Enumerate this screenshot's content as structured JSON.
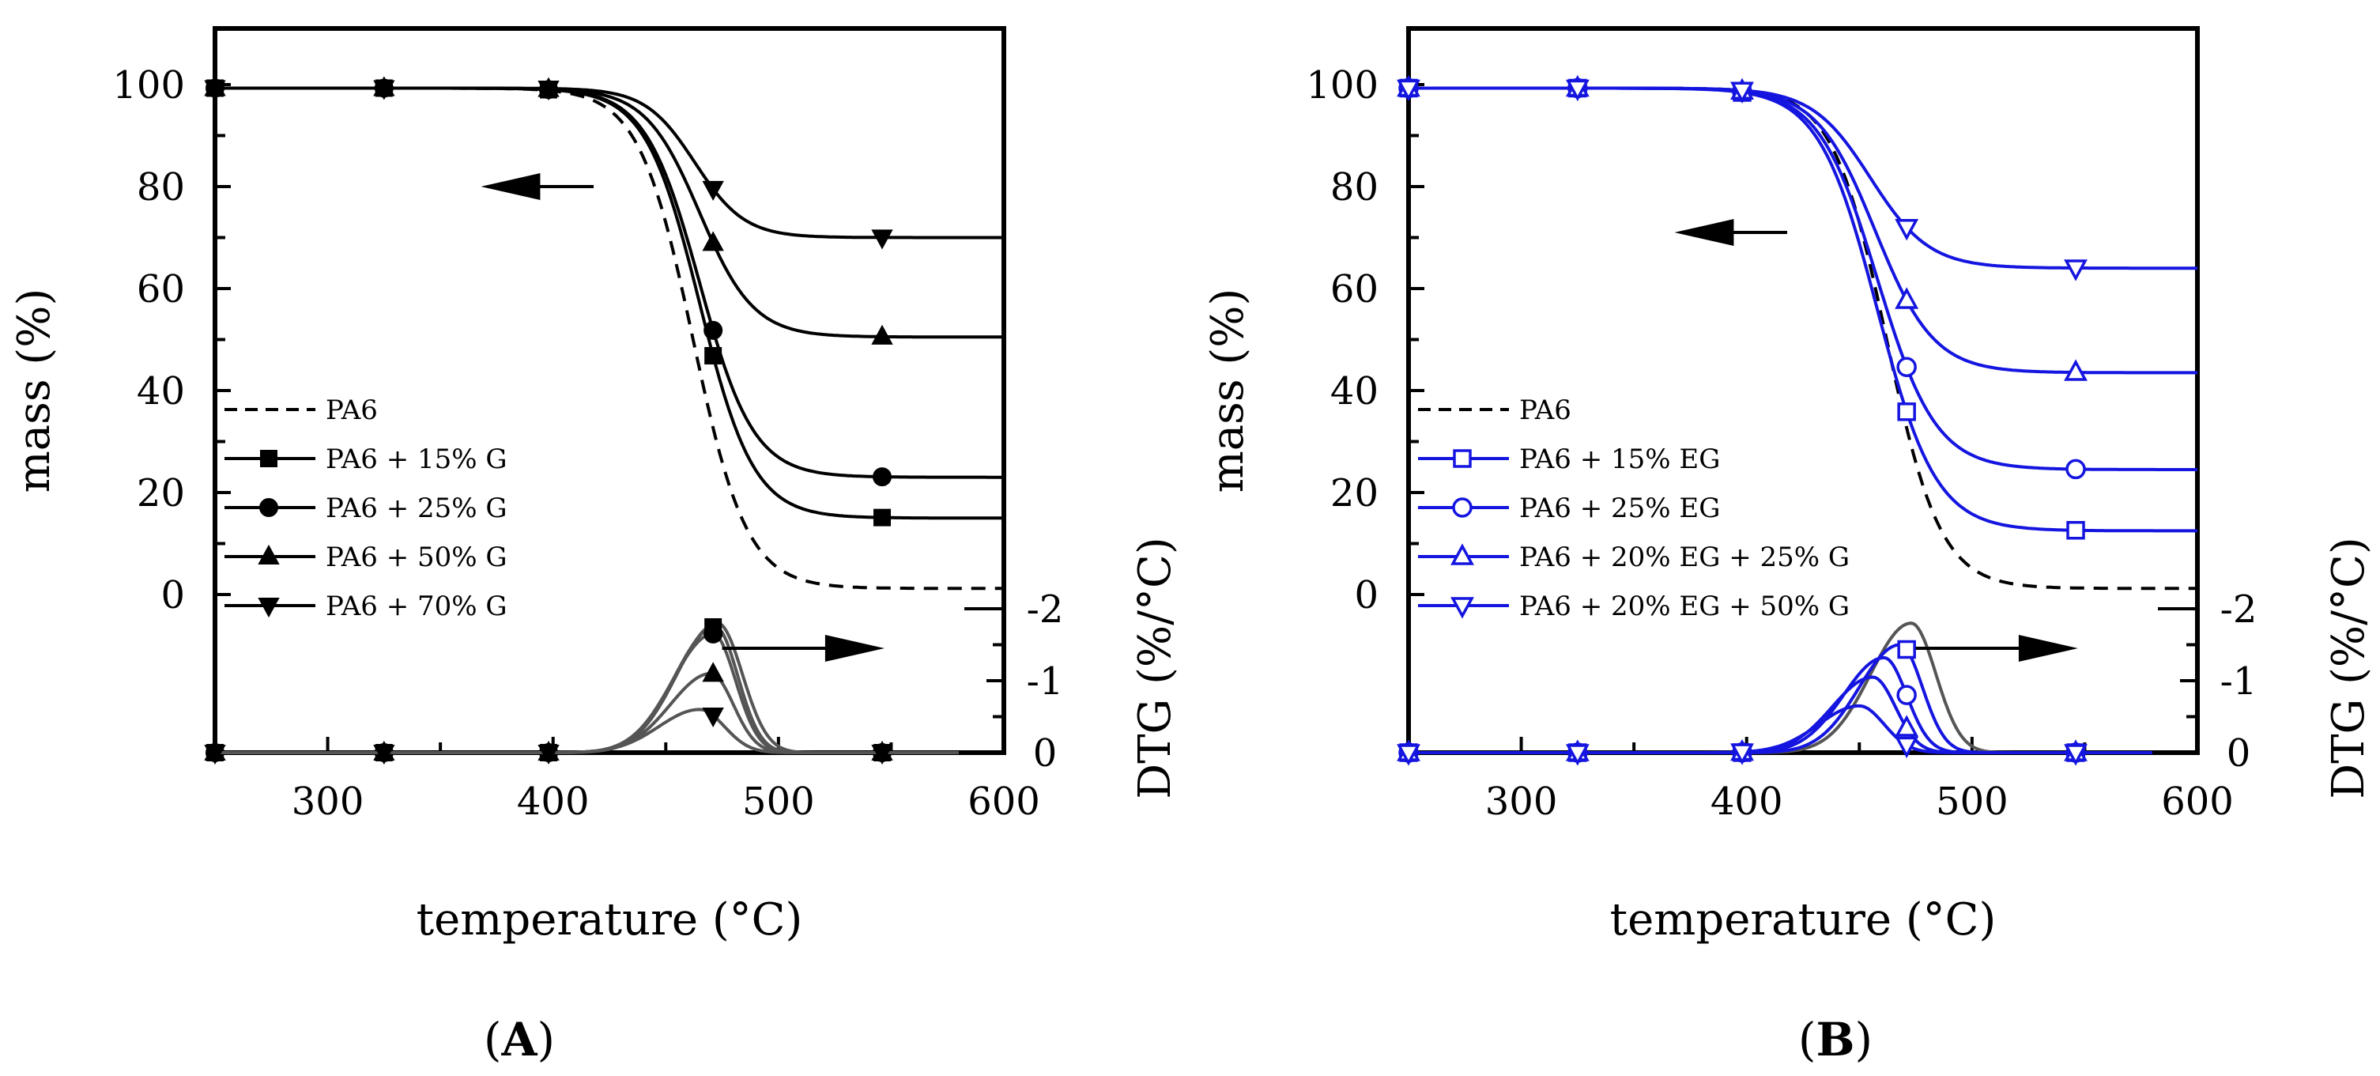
{
  "chart_data": [
    {
      "type": "line",
      "panel_label": "A",
      "xlabel": "temperature (°C)",
      "ylabel": "mass (%)",
      "y2label": "DTG (%/°C)",
      "xlim": [
        250,
        600
      ],
      "ylim": [
        -31,
        111
      ],
      "y2lim": [
        0,
        -2
      ],
      "xticks": [
        300,
        400,
        500,
        600
      ],
      "yticks": [
        0,
        20,
        40,
        60,
        80,
        100
      ],
      "y2ticks": [
        -2,
        -1,
        0
      ],
      "y2tick_labels": [
        "-2",
        "-1",
        "0"
      ],
      "legend_position": "left",
      "arrows": [
        {
          "direction": "left",
          "axis": "mass",
          "x": [
            418,
            375
          ],
          "y": [
            80,
            80
          ]
        },
        {
          "direction": "right",
          "axis": "DTG",
          "x": [
            475,
            540
          ],
          "y": [
            -1.45,
            -1.45
          ]
        }
      ],
      "series": [
        {
          "name": "PA6",
          "color": "#000000",
          "dash": true,
          "marker": "none",
          "mass": {
            "onset": 462,
            "width": 12,
            "residue": 1.2
          },
          "dtg": {
            "peak_T": 473,
            "peak": -1.8,
            "sigma_left": 18,
            "sigma_right": 11
          }
        },
        {
          "name": "PA6 + 15% G",
          "color": "#000000",
          "dash": false,
          "marker": "square",
          "mass": {
            "onset": 465,
            "width": 12,
            "residue": 15
          },
          "dtg": {
            "peak_T": 472,
            "peak": -1.75,
            "sigma_left": 18,
            "sigma_right": 10
          }
        },
        {
          "name": "PA6 + 25% G",
          "color": "#000000",
          "dash": false,
          "marker": "circle",
          "mass": {
            "onset": 465,
            "width": 12,
            "residue": 23
          },
          "dtg": {
            "peak_T": 471,
            "peak": -1.65,
            "sigma_left": 18,
            "sigma_right": 10
          }
        },
        {
          "name": "PA6 + 50% G",
          "color": "#000000",
          "dash": false,
          "marker": "triangle-up",
          "mass": {
            "onset": 465,
            "width": 12,
            "residue": 50.5
          },
          "dtg": {
            "peak_T": 470,
            "peak": -1.1,
            "sigma_left": 18,
            "sigma_right": 10
          }
        },
        {
          "name": "PA6 + 70% G",
          "color": "#000000",
          "dash": false,
          "marker": "triangle-down",
          "mass": {
            "onset": 463,
            "width": 11,
            "residue": 70
          },
          "dtg": {
            "peak_T": 465,
            "peak": -0.6,
            "sigma_left": 18,
            "sigma_right": 11
          }
        }
      ]
    },
    {
      "type": "line",
      "panel_label": "B",
      "xlabel": "temperature (°C)",
      "ylabel": "mass (%)",
      "y2label": "DTG (%/°C)",
      "xlim": [
        250,
        600
      ],
      "ylim": [
        -31,
        111
      ],
      "y2lim": [
        0,
        -2
      ],
      "xticks": [
        300,
        400,
        500,
        600
      ],
      "yticks": [
        0,
        20,
        40,
        60,
        80,
        100
      ],
      "y2ticks": [
        -2,
        -1,
        0
      ],
      "y2tick_labels": [
        "-2",
        "-1",
        "0"
      ],
      "legend_position": "left",
      "arrows": [
        {
          "direction": "left",
          "axis": "mass",
          "x": [
            418,
            375
          ],
          "y": [
            71,
            71
          ]
        },
        {
          "direction": "right",
          "axis": "DTG",
          "x": [
            475,
            540
          ],
          "y": [
            -1.45,
            -1.45
          ]
        }
      ],
      "series": [
        {
          "name": "PA6",
          "color": "#000000",
          "dash": true,
          "marker": "none",
          "mass": {
            "onset": 462,
            "width": 12,
            "residue": 1.2
          },
          "dtg": {
            "peak_T": 473,
            "peak": -1.8,
            "sigma_left": 18,
            "sigma_right": 11
          }
        },
        {
          "name": "PA6 + 15% EG",
          "color": "#1515e0",
          "dash": false,
          "marker": "square-open",
          "mass": {
            "onset": 458,
            "width": 13,
            "residue": 12.5
          },
          "dtg": {
            "peak_T": 468,
            "peak": -1.5,
            "sigma_left": 18,
            "sigma_right": 10
          }
        },
        {
          "name": "PA6 + 25% EG",
          "color": "#1515e0",
          "dash": false,
          "marker": "circle-open",
          "mass": {
            "onset": 458,
            "width": 13,
            "residue": 24.5
          },
          "dtg": {
            "peak_T": 461,
            "peak": -1.32,
            "sigma_left": 18,
            "sigma_right": 10
          }
        },
        {
          "name": "PA6 + 20% EG + 25% G",
          "color": "#1515e0",
          "dash": false,
          "marker": "triangle-up-open",
          "mass": {
            "onset": 457,
            "width": 13,
            "residue": 43.5
          },
          "dtg": {
            "peak_T": 456,
            "peak": -1.05,
            "sigma_left": 18,
            "sigma_right": 10
          }
        },
        {
          "name": "PA6 + 20% EG + 50% G",
          "color": "#1515e0",
          "dash": false,
          "marker": "triangle-down-open",
          "mass": {
            "onset": 455,
            "width": 13,
            "residue": 64
          },
          "dtg": {
            "peak_T": 450,
            "peak": -0.65,
            "sigma_left": 18,
            "sigma_right": 11
          }
        }
      ]
    }
  ]
}
